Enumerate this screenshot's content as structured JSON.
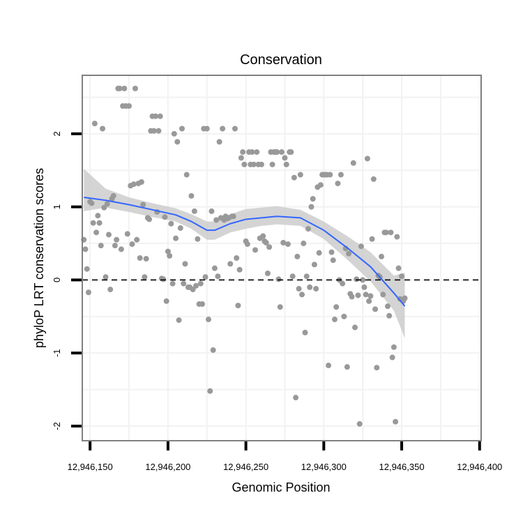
{
  "chart_data": {
    "type": "scatter",
    "title": "Conservation",
    "xlabel": "Genomic Position",
    "ylabel": "phyloP LRT conservation scores",
    "xlim": [
      12946145,
      12946401
    ],
    "ylim": [
      -2.2,
      2.8
    ],
    "x_ticks": [
      12946150,
      12946200,
      12946250,
      12946300,
      12946350,
      12946400
    ],
    "x_tick_labels": [
      "12,946,150",
      "12,946,200",
      "12,946,250",
      "12,946,300",
      "12,946,350",
      "12,946,400"
    ],
    "y_ticks": [
      -2,
      -1,
      0,
      1,
      2
    ],
    "y_tick_labels": [
      "-2",
      "-1",
      "0",
      "1",
      "2"
    ],
    "reference_line": {
      "y": 0,
      "style": "dashed"
    },
    "colors": {
      "points": "#999999",
      "smooth": "#3366ff",
      "ribbon": "#cccccc",
      "panel_border": "#808080",
      "grid": "#f2f2f2"
    },
    "points": [
      [
        12946146,
        0.55
      ],
      [
        12946147,
        0.42
      ],
      [
        12946148,
        0.15
      ],
      [
        12946149,
        -0.17
      ],
      [
        12946150,
        1.07
      ],
      [
        12946151,
        1.05
      ],
      [
        12946152,
        0.78
      ],
      [
        12946153,
        2.14
      ],
      [
        12946154,
        0.65
      ],
      [
        12946155,
        0.88
      ],
      [
        12946156,
        0.78
      ],
      [
        12946157,
        0.47
      ],
      [
        12946158,
        2.07
      ],
      [
        12946159,
        0.99
      ],
      [
        12946160,
        0.04
      ],
      [
        12946161,
        1.04
      ],
      [
        12946162,
        0.62
      ],
      [
        12946163,
        -0.13
      ],
      [
        12946164,
        1.11
      ],
      [
        12946165,
        1.15
      ],
      [
        12946166,
        0.47
      ],
      [
        12946167,
        0.55
      ],
      [
        12946168,
        2.62
      ],
      [
        12946169,
        2.62
      ],
      [
        12946170,
        0.42
      ],
      [
        12946171,
        2.38
      ],
      [
        12946172,
        2.62
      ],
      [
        12946173,
        2.38
      ],
      [
        12946174,
        0.63
      ],
      [
        12946175,
        2.38
      ],
      [
        12946176,
        1.29
      ],
      [
        12946177,
        0.49
      ],
      [
        12946178,
        1.31
      ],
      [
        12946179,
        2.62
      ],
      [
        12946180,
        0.55
      ],
      [
        12946181,
        1.32
      ],
      [
        12946182,
        0.3
      ],
      [
        12946183,
        1.34
      ],
      [
        12946184,
        1.03
      ],
      [
        12946185,
        0.04
      ],
      [
        12946186,
        0.29
      ],
      [
        12946187,
        0.85
      ],
      [
        12946188,
        0.83
      ],
      [
        12946189,
        2.04
      ],
      [
        12946190,
        2.24
      ],
      [
        12946191,
        2.04
      ],
      [
        12946192,
        2.24
      ],
      [
        12946193,
        0.93
      ],
      [
        12946194,
        2.04
      ],
      [
        12946195,
        2.24
      ],
      [
        12946196,
        0.02
      ],
      [
        12946197,
        0.01
      ],
      [
        12946198,
        0.86
      ],
      [
        12946199,
        -0.29
      ],
      [
        12946200,
        0.39
      ],
      [
        12946201,
        0.33
      ],
      [
        12946202,
        0.77
      ],
      [
        12946203,
        -0.05
      ],
      [
        12946204,
        2.0
      ],
      [
        12946205,
        0.57
      ],
      [
        12946206,
        1.89
      ],
      [
        12946207,
        -0.55
      ],
      [
        12946208,
        0.71
      ],
      [
        12946209,
        2.07
      ],
      [
        12946210,
        -0.05
      ],
      [
        12946211,
        0.22
      ],
      [
        12946212,
        1.44
      ],
      [
        12946213,
        -0.1
      ],
      [
        12946214,
        -0.1
      ],
      [
        12946215,
        1.15
      ],
      [
        12946216,
        -0.13
      ],
      [
        12946217,
        0.94
      ],
      [
        12946218,
        -0.08
      ],
      [
        12946219,
        0.56
      ],
      [
        12946220,
        -0.33
      ],
      [
        12946221,
        -0.05
      ],
      [
        12946222,
        -0.33
      ],
      [
        12946223,
        2.07
      ],
      [
        12946224,
        0.04
      ],
      [
        12946225,
        2.07
      ],
      [
        12946226,
        -0.54
      ],
      [
        12946227,
        -1.52
      ],
      [
        12946228,
        0.94
      ],
      [
        12946229,
        -0.96
      ],
      [
        12946230,
        0.16
      ],
      [
        12946231,
        0.82
      ],
      [
        12946232,
        0.05
      ],
      [
        12946233,
        1.89
      ],
      [
        12946234,
        0.85
      ],
      [
        12946235,
        2.07
      ],
      [
        12946236,
        0.82
      ],
      [
        12946237,
        0.87
      ],
      [
        12946238,
        0.84
      ],
      [
        12946239,
        0.85
      ],
      [
        12946240,
        0.22
      ],
      [
        12946241,
        0.87
      ],
      [
        12946242,
        0.87
      ],
      [
        12946243,
        2.07
      ],
      [
        12946244,
        0.3
      ],
      [
        12946245,
        -0.35
      ],
      [
        12946246,
        0.14
      ],
      [
        12946247,
        1.67
      ],
      [
        12946248,
        1.75
      ],
      [
        12946249,
        1.58
      ],
      [
        12946250,
        0.53
      ],
      [
        12946251,
        0.49
      ],
      [
        12946252,
        1.75
      ],
      [
        12946253,
        1.58
      ],
      [
        12946254,
        1.75
      ],
      [
        12946255,
        1.58
      ],
      [
        12946256,
        0.41
      ],
      [
        12946257,
        1.75
      ],
      [
        12946258,
        1.58
      ],
      [
        12946259,
        0.57
      ],
      [
        12946260,
        1.58
      ],
      [
        12946261,
        0.6
      ],
      [
        12946262,
        0.53
      ],
      [
        12946263,
        0.51
      ],
      [
        12946264,
        0.09
      ],
      [
        12946265,
        0.45
      ],
      [
        12946266,
        1.75
      ],
      [
        12946267,
        1.58
      ],
      [
        12946268,
        1.75
      ],
      [
        12946269,
        1.75
      ],
      [
        12946270,
        1.75
      ],
      [
        12946271,
        0.01
      ],
      [
        12946272,
        -0.37
      ],
      [
        12946273,
        1.75
      ],
      [
        12946274,
        0.51
      ],
      [
        12946275,
        1.67
      ],
      [
        12946276,
        1.58
      ],
      [
        12946277,
        0.49
      ],
      [
        12946278,
        1.75
      ],
      [
        12946279,
        1.75
      ],
      [
        12946280,
        0.05
      ],
      [
        12946281,
        1.4
      ],
      [
        12946282,
        -1.61
      ],
      [
        12946283,
        0.32
      ],
      [
        12946284,
        -0.12
      ],
      [
        12946285,
        1.44
      ],
      [
        12946286,
        -0.2
      ],
      [
        12946287,
        0.5
      ],
      [
        12946288,
        -0.72
      ],
      [
        12946289,
        0.05
      ],
      [
        12946290,
        0.7
      ],
      [
        12946291,
        -0.1
      ],
      [
        12946292,
        1.0
      ],
      [
        12946293,
        1.11
      ],
      [
        12946294,
        0.21
      ],
      [
        12946295,
        -0.12
      ],
      [
        12946296,
        1.27
      ],
      [
        12946297,
        0.37
      ],
      [
        12946298,
        1.3
      ],
      [
        12946299,
        1.44
      ],
      [
        12946300,
        1.44
      ],
      [
        12946301,
        1.44
      ],
      [
        12946302,
        1.44
      ],
      [
        12946303,
        -1.17
      ],
      [
        12946304,
        1.44
      ],
      [
        12946305,
        0.38
      ],
      [
        12946306,
        0.27
      ],
      [
        12946307,
        -0.54
      ],
      [
        12946308,
        -0.37
      ],
      [
        12946309,
        1.32
      ],
      [
        12946310,
        0.0
      ],
      [
        12946311,
        1.44
      ],
      [
        12946312,
        -0.05
      ],
      [
        12946313,
        -0.5
      ],
      [
        12946314,
        0.43
      ],
      [
        12946315,
        -1.19
      ],
      [
        12946316,
        0.36
      ],
      [
        12946317,
        -0.19
      ],
      [
        12946318,
        -0.23
      ],
      [
        12946319,
        1.6
      ],
      [
        12946320,
        -0.65
      ],
      [
        12946321,
        0.01
      ],
      [
        12946322,
        -0.21
      ],
      [
        12946323,
        -1.97
      ],
      [
        12946324,
        0.46
      ],
      [
        12946325,
        0.0
      ],
      [
        12946326,
        -0.1
      ],
      [
        12946327,
        -0.2
      ],
      [
        12946328,
        1.66
      ],
      [
        12946329,
        -0.29
      ],
      [
        12946330,
        -0.22
      ],
      [
        12946331,
        0.56
      ],
      [
        12946332,
        1.38
      ],
      [
        12946333,
        -0.4
      ],
      [
        12946334,
        -1.2
      ],
      [
        12946335,
        0.06
      ],
      [
        12946336,
        0.04
      ],
      [
        12946337,
        0.32
      ],
      [
        12946338,
        -0.2
      ],
      [
        12946339,
        0.65
      ],
      [
        12946340,
        0.65
      ],
      [
        12946341,
        -0.36
      ],
      [
        12946342,
        -0.49
      ],
      [
        12946343,
        0.65
      ],
      [
        12946344,
        -1.06
      ],
      [
        12946345,
        -0.92
      ],
      [
        12946346,
        -1.94
      ],
      [
        12946347,
        0.59
      ],
      [
        12946348,
        0.16
      ],
      [
        12946349,
        -0.26
      ],
      [
        12946350,
        0.05
      ],
      [
        12946351,
        -0.29
      ],
      [
        12946352,
        -0.25
      ]
    ],
    "smooth_fit": {
      "x": [
        12946146,
        12946160,
        12946175,
        12946190,
        12946205,
        12946215,
        12946225,
        12946230,
        12946240,
        12946250,
        12946260,
        12946270,
        12946285,
        12946300,
        12946315,
        12946330,
        12946345,
        12946352
      ],
      "y": [
        1.13,
        1.09,
        1.03,
        0.96,
        0.89,
        0.8,
        0.68,
        0.68,
        0.77,
        0.83,
        0.85,
        0.87,
        0.85,
        0.68,
        0.44,
        0.18,
        -0.18,
        -0.36
      ],
      "lower": [
        0.94,
        0.99,
        0.93,
        0.86,
        0.8,
        0.7,
        0.55,
        0.55,
        0.65,
        0.7,
        0.74,
        0.76,
        0.74,
        0.56,
        0.28,
        -0.02,
        -0.42,
        -0.8
      ],
      "upper": [
        1.52,
        1.25,
        1.13,
        1.05,
        0.98,
        0.9,
        0.8,
        0.8,
        0.9,
        0.97,
        0.99,
        1.01,
        0.96,
        0.8,
        0.6,
        0.38,
        0.06,
        0.1
      ]
    }
  }
}
